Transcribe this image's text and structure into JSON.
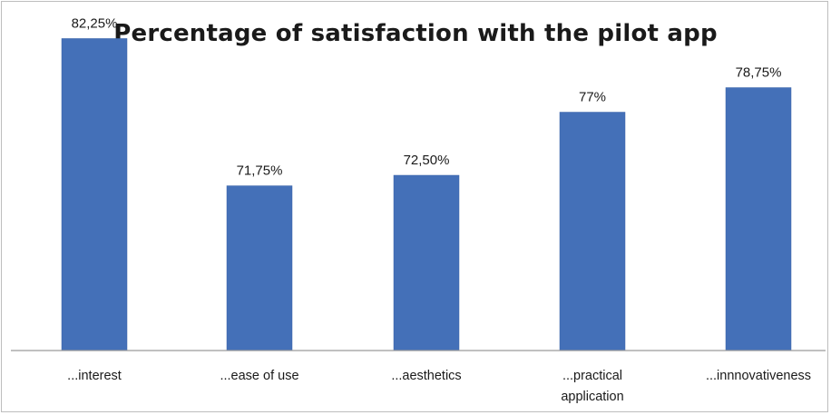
{
  "chart_data": {
    "type": "bar",
    "title": "Percentage of satisfaction with the pilot app",
    "categories": [
      "...interest",
      "...ease of use",
      "...aesthetics",
      "...practical application",
      "...innnovativeness"
    ],
    "category_lines": [
      [
        "...interest"
      ],
      [
        "...ease of use"
      ],
      [
        "...aesthetics"
      ],
      [
        "...practical",
        "application"
      ],
      [
        "...innnovativeness"
      ]
    ],
    "values": [
      82.25,
      71.75,
      72.5,
      77,
      78.75
    ],
    "value_labels": [
      "82,25%",
      "71,75%",
      "72,50%",
      "77%",
      "78,75%"
    ],
    "ylim": [
      60,
      85
    ],
    "xlabel": "",
    "ylabel": "",
    "grid": false,
    "legend": "none",
    "bar_color": "#4470b8"
  }
}
